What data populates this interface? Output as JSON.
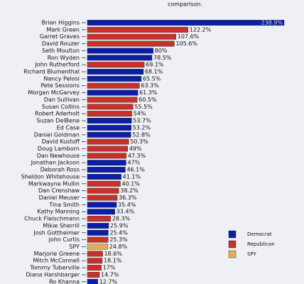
{
  "chart_data": {
    "type": "bar",
    "orientation": "horizontal",
    "subtitle": "comparison.",
    "categories": [
      "Brian Higgins",
      "Mark Green",
      "Garret Graves",
      "David Rouzer",
      "Seth Moulton",
      "Ron Wyden",
      "John Rutherford",
      "Richard Blumenthal",
      "Nancy Pelosi",
      "Pete Sessions",
      "Morgan McGarvey",
      "Dan Sullivan",
      "Susan Collins",
      "Robert Aderholt",
      "Suzan DelBene",
      "Ed Case",
      "Daniel Goldman",
      "David Kustoff",
      "Doug Lamborn",
      "Dan Newhouse",
      "Jonathan Jackson",
      "Deborah Ross",
      "Sheldon Whitehouse",
      "Markwayne Mullin",
      "Dan Crenshaw",
      "Daniel Meuser",
      "Tina Smith",
      "Kathy Manning",
      "Chuck Fleischmann",
      "Mikie Sherrill",
      "Josh Gottheimer",
      "John Curtis",
      "SPY",
      "Marjorie Greene",
      "Mitch McConnell",
      "Tommy Tuberville",
      "Diana Harshbarger",
      "Ro Khanna"
    ],
    "values": [
      238.9,
      122.2,
      107.6,
      105.6,
      80,
      78.5,
      69.1,
      68.1,
      65.5,
      63.3,
      61.3,
      60.5,
      55.5,
      54,
      53.7,
      53.2,
      52.8,
      50.3,
      49,
      47.3,
      47,
      46.1,
      41.1,
      40.1,
      38.2,
      36.3,
      35.4,
      33.4,
      28.3,
      25.9,
      25.4,
      25.3,
      24.8,
      18.6,
      18.1,
      17,
      14.7,
      12.7
    ],
    "value_labels": [
      "238.9%",
      "122.2%",
      "107.6%",
      "105.6%",
      "80%",
      "78.5%",
      "69.1%",
      "68.1%",
      "65.5%",
      "63.3%",
      "61.3%",
      "60.5%",
      "55.5%",
      "54%",
      "53.7%",
      "53.2%",
      "52.8%",
      "50.3%",
      "49%",
      "47.3%",
      "47%",
      "46.1%",
      "41.1%",
      "40.1%",
      "38.2%",
      "36.3%",
      "35.4%",
      "33.4%",
      "28.3%",
      "25.9%",
      "25.4%",
      "25.3%",
      "24.8%",
      "18.6%",
      "18.1%",
      "17%",
      "14.7%",
      "12.7%"
    ],
    "colors": [
      "#0b1ea6",
      "#c8302a",
      "#c8302a",
      "#c8302a",
      "#0b1ea6",
      "#0b1ea6",
      "#c8302a",
      "#0b1ea6",
      "#0b1ea6",
      "#c8302a",
      "#0b1ea6",
      "#c8302a",
      "#c8302a",
      "#c8302a",
      "#0b1ea6",
      "#0b1ea6",
      "#0b1ea6",
      "#c8302a",
      "#c8302a",
      "#c8302a",
      "#0b1ea6",
      "#0b1ea6",
      "#0b1ea6",
      "#c8302a",
      "#c8302a",
      "#c8302a",
      "#0b1ea6",
      "#0b1ea6",
      "#c8302a",
      "#0b1ea6",
      "#0b1ea6",
      "#c8302a",
      "#e0b050",
      "#c8302a",
      "#c8302a",
      "#c8302a",
      "#c8302a",
      "#0b1ea6"
    ],
    "legend": [
      {
        "name": "Democrat",
        "color": "#0b1ea6"
      },
      {
        "name": "Republican",
        "color": "#c8302a"
      },
      {
        "name": "SPY",
        "color": "#e0b050"
      }
    ]
  }
}
